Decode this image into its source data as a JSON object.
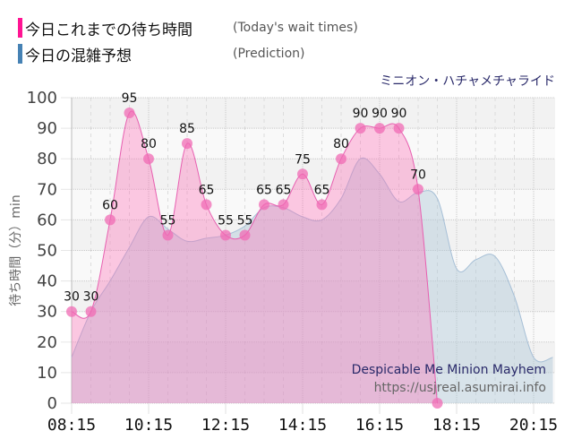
{
  "legend": [
    {
      "label": "今日これまでの待ち時間",
      "sub": "(Today's wait times)",
      "color": "#ff1493"
    },
    {
      "label": "今日の混雑予想",
      "sub": "(Prediction)",
      "color": "#4682b4"
    }
  ],
  "ride_name_jp": "ミニオン・ハチャメチャライド",
  "watermark": {
    "title": "Despicable Me Minion Mayhem",
    "url": "https://usjreal.asumirai.info"
  },
  "colors": {
    "actual_fill": "#ff69b4",
    "actual_line": "#e75fb0",
    "actual_marker": "#f06bb4",
    "prediction_fill": "#b0c8d8",
    "prediction_line": "#a6bfd6",
    "band_dark": "#f2f2f2",
    "band_light": "#f9f9f9"
  },
  "chart_data": {
    "type": "area",
    "title": "ミニオン・ハチャメチャライド",
    "xlabel": "",
    "ylabel": "待ち時間（分）min",
    "ylim": [
      0,
      100
    ],
    "yticks": [
      0,
      10,
      20,
      30,
      40,
      50,
      60,
      70,
      80,
      90,
      100
    ],
    "xticks": [
      "08:15",
      "10:15",
      "12:15",
      "14:15",
      "16:15",
      "18:15",
      "20:15"
    ],
    "grid": true,
    "legend_position": "top-left",
    "series": [
      {
        "name": "今日これまでの待ち時間 (Today's wait times)",
        "x": [
          "08:15",
          "08:45",
          "09:15",
          "09:45",
          "10:15",
          "10:45",
          "11:15",
          "11:45",
          "12:15",
          "12:45",
          "13:15",
          "13:45",
          "14:15",
          "14:45",
          "15:15",
          "15:45",
          "16:15",
          "16:45",
          "17:15",
          "17:45"
        ],
        "values": [
          30,
          30,
          60,
          95,
          80,
          55,
          85,
          65,
          55,
          55,
          65,
          65,
          75,
          65,
          80,
          90,
          90,
          90,
          70,
          0
        ]
      },
      {
        "name": "今日の混雑予想 (Prediction)",
        "x": [
          "08:15",
          "08:45",
          "09:15",
          "09:45",
          "10:15",
          "10:45",
          "11:15",
          "11:45",
          "12:15",
          "12:45",
          "13:15",
          "13:45",
          "14:15",
          "14:45",
          "15:15",
          "15:45",
          "16:15",
          "16:45",
          "17:15",
          "17:45",
          "18:15",
          "18:45",
          "19:15",
          "19:45",
          "20:15",
          "20:45"
        ],
        "values": [
          15,
          30,
          40,
          51,
          61,
          57,
          53,
          54,
          55,
          58,
          64,
          64,
          61,
          60,
          67,
          80,
          75,
          66,
          69,
          67,
          44,
          47,
          48,
          35,
          15,
          15
        ]
      }
    ]
  }
}
